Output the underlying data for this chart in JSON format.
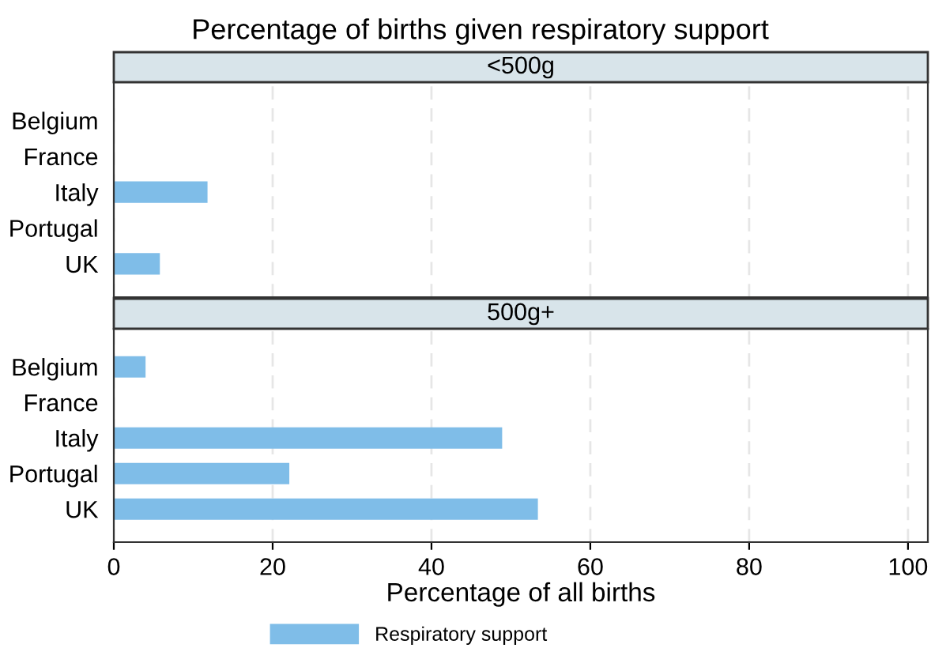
{
  "chart_data": [
    {
      "type": "bar",
      "orientation": "horizontal",
      "title": "Percentage of births given respiratory support",
      "subtitle": "<500g",
      "categories": [
        "Belgium",
        "France",
        "Italy",
        "Portugal",
        "UK"
      ],
      "series": [
        {
          "color": "#7fbde8",
          "values": [
            null,
            null,
            11.8,
            null,
            5.8
          ]
        }
      ],
      "xlim": [
        0,
        102.5
      ],
      "xticks": [
        0,
        20,
        40,
        60,
        80,
        100
      ],
      "tick_labels": "y",
      "grid": "x",
      "legend": false
    },
    {
      "type": "bar",
      "orientation": "horizontal",
      "subtitle": "500g+",
      "xlabel": "Percentage of all births",
      "categories": [
        "Belgium",
        "France",
        "Italy",
        "Portugal",
        "UK"
      ],
      "series": [
        {
          "name": "Respiratory support",
          "color": "#7fbde8",
          "values": [
            4.0,
            null,
            48.9,
            22.1,
            53.4
          ]
        }
      ],
      "xlim": [
        0,
        102.5
      ],
      "xticks": [
        0,
        20,
        40,
        60,
        80,
        100
      ],
      "grid": "x",
      "legend": "bottom"
    }
  ]
}
